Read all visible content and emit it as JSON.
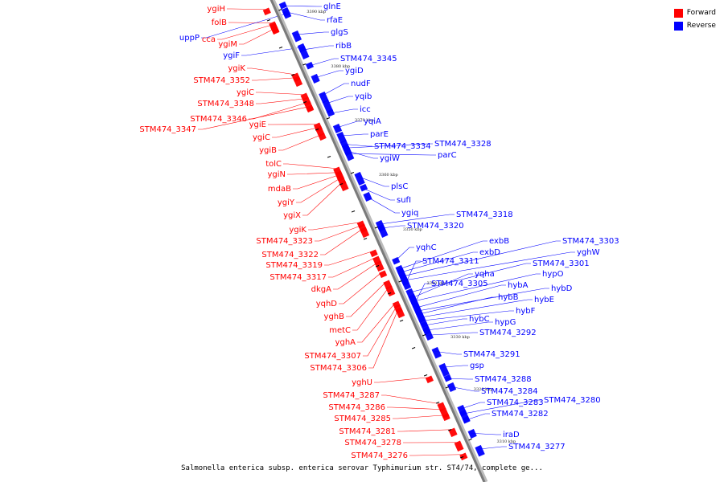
{
  "legend": {
    "forward_label": "Forward",
    "reverse_label": "Reverse",
    "forward_color": "#ff0000",
    "reverse_color": "#0000ff"
  },
  "caption": "Salmonella enterica subsp. enterica serovar Typhimurium str. ST4/74, complete ge...",
  "ticks": [
    "3390 kbp",
    "3380 kbp",
    "3370 kbp",
    "3360 kbp",
    "3350 kbp",
    "3340 kbp",
    "3330 kbp",
    "3320 kbp",
    "3310 kbp"
  ],
  "forward_genes": [
    "ygiH",
    "folB",
    "cca",
    "ygiM",
    "ygiK",
    "STM474_3352",
    "ygiC",
    "STM474_3348",
    "STM474_3346",
    "STM474_3347",
    "ygiE",
    "ygiC",
    "ygiB",
    "tolC",
    "ygiN",
    "mdaB",
    "ygiY",
    "ygiX",
    "ygiK",
    "STM474_3323",
    "STM474_3322",
    "STM474_3319",
    "STM474_3317",
    "dkgA",
    "yqhD",
    "yghB",
    "metC",
    "yghA",
    "STM474_3307",
    "STM474_3306",
    "yghU",
    "STM474_3287",
    "STM474_3286",
    "STM474_3285",
    "STM474_3281",
    "STM474_3278",
    "STM474_3276"
  ],
  "reverse_genes_left": [
    "uppP",
    "ygiF"
  ],
  "reverse_genes": [
    "glnE",
    "rfaE",
    "glgS",
    "ribB",
    "STM474_3345",
    "ygiD",
    "nudF",
    "yqib",
    "icc",
    "yqiA",
    "parE",
    "STM474_3334",
    "STM474_3328",
    "ygiW",
    "parC",
    "plsC",
    "sufI",
    "ygiq",
    "STM474_3318",
    "STM474_3320",
    "yqhC",
    "exbB",
    "exbD",
    "STM474_3303",
    "yghW",
    "STM474_3311",
    "STM474_3301",
    "yqha",
    "hypO",
    "STM474_3305",
    "hybA",
    "hybD",
    "hybB",
    "hybE",
    "hybF",
    "hybC",
    "hypG",
    "STM474_3292",
    "STM474_3291",
    "gsp",
    "STM474_3288",
    "STM474_3284",
    "STM474_3283",
    "STM474_3280",
    "STM474_3282",
    "iraD",
    "STM474_3277"
  ]
}
